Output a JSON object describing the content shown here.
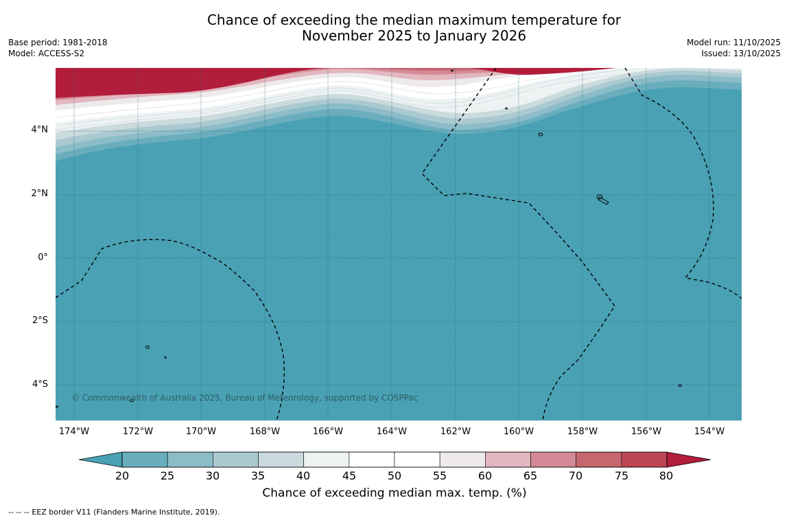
{
  "header": {
    "title_line1": "Chance of exceeding the median maximum temperature for",
    "title_line2": "November 2025 to January 2026",
    "base_period": "Base period: 1981-2018",
    "model": "Model: ACCESS-S2",
    "model_run": "Model run: 11/10/2025",
    "issued": "Issued: 13/10/2025"
  },
  "map": {
    "lat_ticks": [
      "4°N",
      "2°N",
      "0°",
      "2°S",
      "4°S"
    ],
    "lon_ticks": [
      "174°W",
      "172°W",
      "170°W",
      "168°W",
      "166°W",
      "164°W",
      "162°W",
      "160°W",
      "158°W",
      "156°W",
      "154°W"
    ],
    "copyright": "© Commonwealth of Australia 2025, Bureau of Meteorology, supported by COSPPac",
    "colors": {
      "ocean": "#49a1b3",
      "land_outline": "#000000",
      "grid": "#2a6d7a"
    }
  },
  "colorbar": {
    "labels": [
      "20",
      "25",
      "30",
      "35",
      "40",
      "45",
      "50",
      "55",
      "60",
      "65",
      "70",
      "75",
      "80"
    ],
    "colors": [
      "#49a1b3",
      "#6aaebd",
      "#8bbcc8",
      "#abc9d0",
      "#cbdadd",
      "#edf2f3",
      "#ffffff",
      "#ffffff",
      "#eeeaeb",
      "#e2b7bf",
      "#d48a96",
      "#c6666f",
      "#bc4556",
      "#b31d3c"
    ],
    "title": "Chance of exceeding median max. temp. (%)"
  },
  "footnote": "-- -- -- EEZ border V11 (Flanders Marine Institute, 2019)."
}
